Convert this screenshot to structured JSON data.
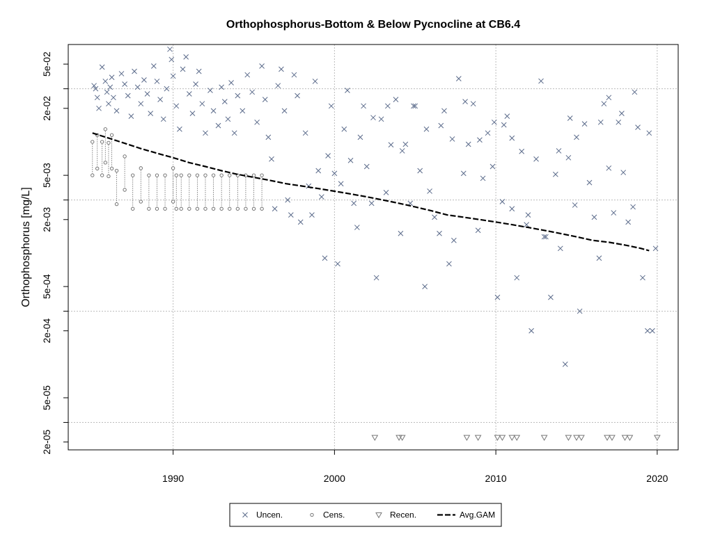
{
  "chart_data": {
    "type": "scatter",
    "title": "Orthophosphorus-Bottom & Below Pycnocline at CB6.4",
    "xlabel": "",
    "ylabel": "Orthophosphorus [mg/L]",
    "y_scale": "log",
    "xlim": [
      1983.5,
      2021.3
    ],
    "ylim": [
      1.7e-05,
      0.075
    ],
    "x_ticks": [
      1990,
      2000,
      2010,
      2020
    ],
    "x_tick_labels": [
      "1990",
      "2000",
      "2010",
      "2020"
    ],
    "y_ticks": [
      2e-05,
      5e-05,
      0.0002,
      0.0005,
      0.002,
      0.005,
      0.02,
      0.05
    ],
    "y_tick_labels": [
      "2e-05",
      "5e-05",
      "2e-04",
      "5e-04",
      "2e-03",
      "5e-03",
      "2e-02",
      "5e-02"
    ],
    "grid": true,
    "grid_x": [
      1990,
      2000,
      2010,
      2020
    ],
    "grid_y": [
      3e-05,
      0.0003,
      0.003,
      0.03
    ],
    "legend": {
      "placement": "bottom-center",
      "entries": [
        "Uncen.",
        "Cens.",
        "Recen.",
        "Avg.GAM"
      ]
    },
    "colors": {
      "uncensored": "#5a6a8a",
      "censored": "#666666",
      "recensored": "#777777",
      "gam": "#000000",
      "grid": "#bbbbbb"
    },
    "series": [
      {
        "name": "Uncen.",
        "marker": "x",
        "points": [
          [
            1985.1,
            0.032
          ],
          [
            1985.2,
            0.03
          ],
          [
            1985.3,
            0.025
          ],
          [
            1985.4,
            0.02
          ],
          [
            1985.6,
            0.047
          ],
          [
            1985.8,
            0.035
          ],
          [
            1985.9,
            0.028
          ],
          [
            1986.0,
            0.022
          ],
          [
            1986.1,
            0.031
          ],
          [
            1986.2,
            0.038
          ],
          [
            1986.3,
            0.025
          ],
          [
            1986.5,
            0.019
          ],
          [
            1986.8,
            0.041
          ],
          [
            1987.0,
            0.033
          ],
          [
            1987.2,
            0.026
          ],
          [
            1987.4,
            0.017
          ],
          [
            1987.6,
            0.043
          ],
          [
            1987.8,
            0.031
          ],
          [
            1988.0,
            0.022
          ],
          [
            1988.2,
            0.036
          ],
          [
            1988.4,
            0.027
          ],
          [
            1988.6,
            0.018
          ],
          [
            1988.8,
            0.048
          ],
          [
            1989.0,
            0.035
          ],
          [
            1989.2,
            0.024
          ],
          [
            1989.4,
            0.016
          ],
          [
            1989.6,
            0.03
          ],
          [
            1989.8,
            0.068
          ],
          [
            1989.9,
            0.055
          ],
          [
            1990.0,
            0.039
          ],
          [
            1990.2,
            0.021
          ],
          [
            1990.4,
            0.013
          ],
          [
            1990.6,
            0.045
          ],
          [
            1990.8,
            0.058
          ],
          [
            1991.0,
            0.027
          ],
          [
            1991.2,
            0.018
          ],
          [
            1991.4,
            0.033
          ],
          [
            1991.6,
            0.043
          ],
          [
            1991.8,
            0.022
          ],
          [
            1992.0,
            0.012
          ],
          [
            1992.3,
            0.029
          ],
          [
            1992.5,
            0.019
          ],
          [
            1992.8,
            0.014
          ],
          [
            1993.0,
            0.031
          ],
          [
            1993.2,
            0.023
          ],
          [
            1993.4,
            0.016
          ],
          [
            1993.6,
            0.034
          ],
          [
            1993.8,
            0.012
          ],
          [
            1994.0,
            0.026
          ],
          [
            1994.3,
            0.019
          ],
          [
            1994.6,
            0.04
          ],
          [
            1994.9,
            0.028
          ],
          [
            1995.2,
            0.015
          ],
          [
            1995.5,
            0.048
          ],
          [
            1995.7,
            0.024
          ],
          [
            1995.9,
            0.011
          ],
          [
            1996.1,
            0.007
          ],
          [
            1996.3,
            0.0025
          ],
          [
            1996.5,
            0.032
          ],
          [
            1996.7,
            0.045
          ],
          [
            1996.9,
            0.019
          ],
          [
            1997.1,
            0.003
          ],
          [
            1997.3,
            0.0022
          ],
          [
            1997.5,
            0.04
          ],
          [
            1997.7,
            0.026
          ],
          [
            1997.9,
            0.0019
          ],
          [
            1998.2,
            0.012
          ],
          [
            1998.4,
            0.004
          ],
          [
            1998.6,
            0.0022
          ],
          [
            1998.8,
            0.035
          ],
          [
            1999.0,
            0.0055
          ],
          [
            1999.2,
            0.0032
          ],
          [
            1999.4,
            0.0009
          ],
          [
            1999.6,
            0.0075
          ],
          [
            1999.8,
            0.021
          ],
          [
            2000.0,
            0.0052
          ],
          [
            2000.2,
            0.0008
          ],
          [
            2000.4,
            0.0042
          ],
          [
            2000.6,
            0.013
          ],
          [
            2000.8,
            0.029
          ],
          [
            2001.0,
            0.0068
          ],
          [
            2001.2,
            0.0028
          ],
          [
            2001.4,
            0.0017
          ],
          [
            2001.6,
            0.011
          ],
          [
            2001.8,
            0.021
          ],
          [
            2002.0,
            0.006
          ],
          [
            2002.3,
            0.0028
          ],
          [
            2002.6,
            0.0006
          ],
          [
            2002.9,
            0.016
          ],
          [
            2003.2,
            0.0035
          ],
          [
            2003.5,
            0.0094
          ],
          [
            2003.8,
            0.024
          ],
          [
            2004.1,
            0.0015
          ],
          [
            2004.4,
            0.0095
          ],
          [
            2004.7,
            0.0028
          ],
          [
            2005.0,
            0.021
          ],
          [
            2005.3,
            0.0055
          ],
          [
            2005.6,
            0.0005
          ],
          [
            2005.9,
            0.0036
          ],
          [
            2006.2,
            0.0021
          ],
          [
            2006.5,
            0.0015
          ],
          [
            2006.8,
            0.019
          ],
          [
            2007.1,
            0.0008
          ],
          [
            2007.4,
            0.0013
          ],
          [
            2007.7,
            0.037
          ],
          [
            2008.0,
            0.0052
          ],
          [
            2008.3,
            0.0095
          ],
          [
            2008.6,
            0.022
          ],
          [
            2008.9,
            0.0016
          ],
          [
            2009.2,
            0.0047
          ],
          [
            2009.5,
            0.012
          ],
          [
            2009.8,
            0.006
          ],
          [
            2010.1,
            0.0004
          ],
          [
            2010.4,
            0.0029
          ],
          [
            2010.7,
            0.017
          ],
          [
            2011.0,
            0.0025
          ],
          [
            2011.3,
            0.0006
          ],
          [
            2011.6,
            0.0082
          ],
          [
            2011.9,
            0.0018
          ],
          [
            2012.2,
            0.0002
          ],
          [
            2012.5,
            0.007
          ],
          [
            2012.8,
            0.0352
          ],
          [
            2013.1,
            0.0014
          ],
          [
            2013.4,
            0.0004
          ],
          [
            2013.7,
            0.0051
          ],
          [
            2014.0,
            0.0011
          ],
          [
            2014.3,
            0.0001
          ],
          [
            2014.6,
            0.0163
          ],
          [
            2014.9,
            0.0027
          ],
          [
            2015.2,
            0.0003
          ],
          [
            2015.5,
            0.0145
          ],
          [
            2015.8,
            0.0043
          ],
          [
            2016.1,
            0.0021
          ],
          [
            2016.4,
            0.0009
          ],
          [
            2016.7,
            0.022
          ],
          [
            2017.0,
            0.0058
          ],
          [
            2017.3,
            0.0023
          ],
          [
            2017.6,
            0.015
          ],
          [
            2017.9,
            0.0053
          ],
          [
            2018.2,
            0.0019
          ],
          [
            2018.5,
            0.0026
          ],
          [
            2018.8,
            0.0135
          ],
          [
            2019.1,
            0.0006
          ],
          [
            2019.4,
            0.0002
          ],
          [
            2019.7,
            0.0002
          ],
          [
            2019.9,
            0.0011
          ],
          [
            2017.0,
            0.025
          ],
          [
            2017.8,
            0.018
          ],
          [
            2018.6,
            0.028
          ],
          [
            2019.5,
            0.012
          ],
          [
            2016.5,
            0.015
          ],
          [
            2015.0,
            0.011
          ],
          [
            2014.5,
            0.0072
          ],
          [
            2013.9,
            0.0083
          ],
          [
            2013.0,
            0.0014
          ],
          [
            2012.0,
            0.0022
          ],
          [
            2011.0,
            0.0108
          ],
          [
            2010.5,
            0.0142
          ],
          [
            2009.9,
            0.015
          ],
          [
            2009.0,
            0.0104
          ],
          [
            2008.1,
            0.023
          ],
          [
            2007.3,
            0.0106
          ],
          [
            2006.6,
            0.014
          ],
          [
            2005.7,
            0.013
          ],
          [
            2004.9,
            0.021
          ],
          [
            2004.2,
            0.0083
          ],
          [
            2003.3,
            0.021
          ],
          [
            2002.4,
            0.0165
          ]
        ]
      },
      {
        "name": "Cens.",
        "marker": "o",
        "points": [
          [
            1985.0,
            0.01
          ],
          [
            1985.3,
            0.0115
          ],
          [
            1985.6,
            0.01
          ],
          [
            1985.8,
            0.013
          ],
          [
            1986.0,
            0.0098
          ],
          [
            1986.2,
            0.0115
          ],
          [
            1986.5,
            0.0055
          ],
          [
            1987.0,
            0.0074
          ],
          [
            1987.5,
            0.005
          ],
          [
            1988.0,
            0.0058
          ],
          [
            1988.5,
            0.005
          ],
          [
            1989.0,
            0.005
          ],
          [
            1989.5,
            0.005
          ],
          [
            1990.0,
            0.0058
          ],
          [
            1990.2,
            0.005
          ],
          [
            1990.5,
            0.005
          ],
          [
            1991.0,
            0.005
          ],
          [
            1991.5,
            0.005
          ],
          [
            1992.0,
            0.005
          ],
          [
            1992.5,
            0.005
          ],
          [
            1993.0,
            0.005
          ],
          [
            1993.5,
            0.005
          ],
          [
            1994.0,
            0.005
          ],
          [
            1994.5,
            0.005
          ],
          [
            1995.0,
            0.005
          ],
          [
            1995.5,
            0.005
          ]
        ]
      },
      {
        "name": "Recen.",
        "marker": "triangle-down",
        "points": [
          [
            2002.5,
            2.2e-05
          ],
          [
            2004.0,
            2.2e-05
          ],
          [
            2004.2,
            2.2e-05
          ],
          [
            2008.2,
            2.2e-05
          ],
          [
            2008.9,
            2.2e-05
          ],
          [
            2010.1,
            2.2e-05
          ],
          [
            2010.4,
            2.2e-05
          ],
          [
            2011.0,
            2.2e-05
          ],
          [
            2011.3,
            2.2e-05
          ],
          [
            2013.0,
            2.2e-05
          ],
          [
            2014.5,
            2.2e-05
          ],
          [
            2015.0,
            2.2e-05
          ],
          [
            2015.3,
            2.2e-05
          ],
          [
            2016.9,
            2.2e-05
          ],
          [
            2017.2,
            2.2e-05
          ],
          [
            2018.0,
            2.2e-05
          ],
          [
            2018.3,
            2.2e-05
          ],
          [
            2020.0,
            2.2e-05
          ]
        ]
      },
      {
        "name": "Avg.GAM",
        "marker": "line",
        "points": [
          [
            1985.0,
            0.012
          ],
          [
            1986.0,
            0.0108
          ],
          [
            1987.0,
            0.0097
          ],
          [
            1988.0,
            0.0087
          ],
          [
            1989.0,
            0.0079
          ],
          [
            1990.0,
            0.0072
          ],
          [
            1991.0,
            0.0065
          ],
          [
            1992.0,
            0.006
          ],
          [
            1993.0,
            0.0055
          ],
          [
            1994.0,
            0.0051
          ],
          [
            1995.0,
            0.0048
          ],
          [
            1996.0,
            0.0045
          ],
          [
            1997.0,
            0.0042
          ],
          [
            1998.0,
            0.004
          ],
          [
            1999.0,
            0.0038
          ],
          [
            2000.0,
            0.0036
          ],
          [
            2001.0,
            0.0034
          ],
          [
            2002.0,
            0.0032
          ],
          [
            2003.0,
            0.003
          ],
          [
            2004.0,
            0.0028
          ],
          [
            2005.0,
            0.0026
          ],
          [
            2006.0,
            0.0024
          ],
          [
            2007.0,
            0.0022
          ],
          [
            2008.0,
            0.0021
          ],
          [
            2009.0,
            0.002
          ],
          [
            2010.0,
            0.0019
          ],
          [
            2011.0,
            0.0018
          ],
          [
            2012.0,
            0.0017
          ],
          [
            2013.0,
            0.0016
          ],
          [
            2014.0,
            0.0015
          ],
          [
            2015.0,
            0.0014
          ],
          [
            2016.0,
            0.0013
          ],
          [
            2017.0,
            0.00125
          ],
          [
            2018.0,
            0.00118
          ],
          [
            2019.0,
            0.0011
          ],
          [
            2019.5,
            0.00105
          ]
        ]
      }
    ]
  }
}
